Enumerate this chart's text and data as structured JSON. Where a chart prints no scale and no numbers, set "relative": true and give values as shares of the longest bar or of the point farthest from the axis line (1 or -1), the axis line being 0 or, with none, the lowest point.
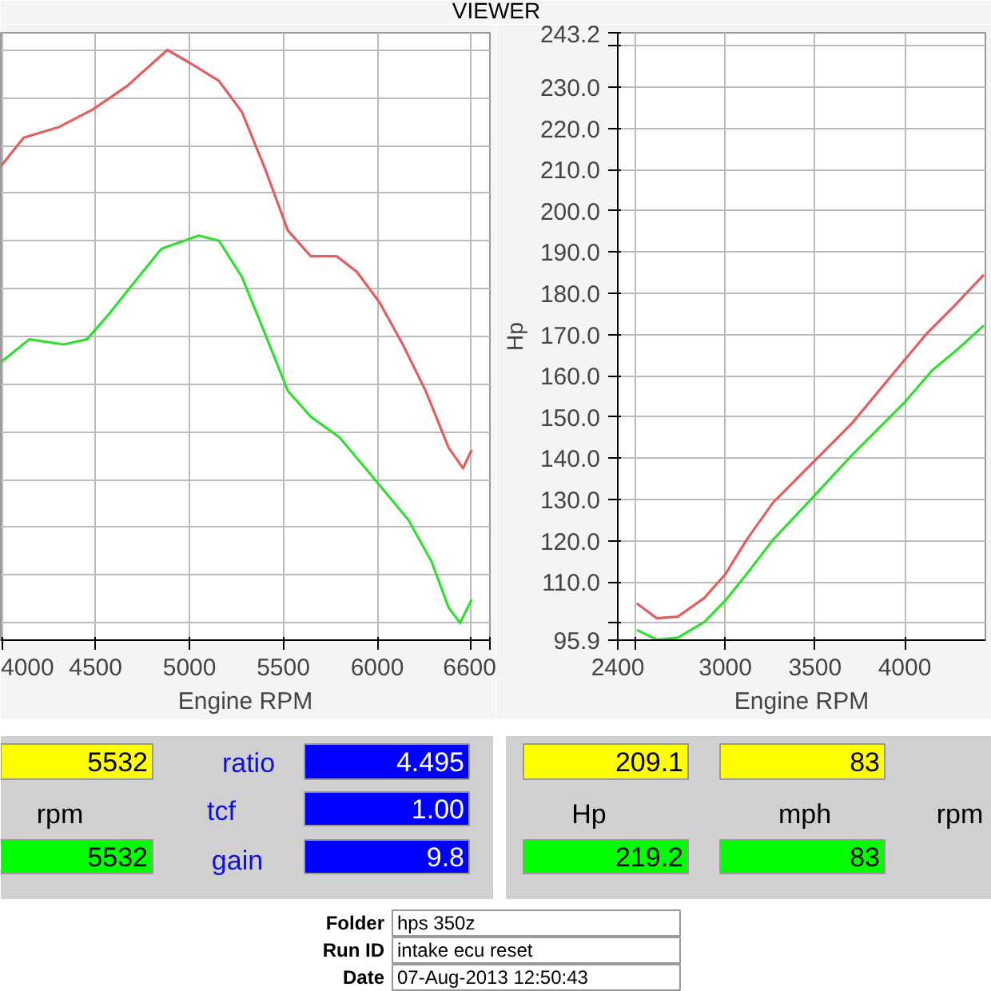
{
  "chart_data": [
    {
      "type": "line",
      "title": "VIEWER",
      "relative": true,
      "xlabel": "Engine RPM",
      "xlim": [
        3995,
        6600
      ],
      "xticks": [
        4000,
        4500,
        5000,
        5500,
        6000,
        {
          "value": 6500,
          "label": null
        },
        6600
      ],
      "grid": true,
      "tick_labels": "x",
      "series": [
        {
          "color": "#e06060",
          "x": [
            3995,
            4117,
            4301,
            4484,
            4668,
            4882,
            5004,
            5157,
            5279,
            5402,
            5524,
            5646,
            5784,
            5891,
            6013,
            6136,
            6258,
            6380,
            6457,
            6503
          ],
          "values": [
            0.797,
            0.847,
            0.865,
            0.896,
            0.937,
            1.0,
            0.977,
            0.946,
            0.892,
            0.793,
            0.685,
            0.64,
            0.64,
            0.613,
            0.559,
            0.486,
            0.405,
            0.306,
            0.27,
            0.302
          ]
        },
        {
          "color": "#33dd33",
          "x": [
            3995,
            4148,
            4331,
            4454,
            4576,
            4729,
            4851,
            5050,
            5157,
            5279,
            5402,
            5524,
            5646,
            5799,
            5983,
            6166,
            6288,
            6380,
            6441,
            6503
          ],
          "values": [
            0.455,
            0.495,
            0.486,
            0.495,
            0.541,
            0.604,
            0.653,
            0.676,
            0.667,
            0.604,
            0.505,
            0.405,
            0.36,
            0.324,
            0.252,
            0.18,
            0.108,
            0.027,
            0.0,
            0.041
          ]
        }
      ]
    },
    {
      "type": "line",
      "xlabel": "Engine RPM",
      "ylabel": "Hp",
      "xlim": [
        2400,
        4450
      ],
      "xticks": [
        2400,
        {
          "value": 2500,
          "label": null
        },
        3000,
        3500,
        4000
      ],
      "ylim": [
        95.9,
        243.2
      ],
      "yticks": [
        {
          "value": 95.9,
          "label": "95.9"
        },
        {
          "value": 100,
          "label": null
        },
        {
          "value": 110,
          "label": "110.0"
        },
        {
          "value": 120,
          "label": "120.0"
        },
        {
          "value": 130,
          "label": "130.0"
        },
        {
          "value": 140,
          "label": "140.0"
        },
        {
          "value": 150,
          "label": "150.0"
        },
        {
          "value": 160,
          "label": "160.0"
        },
        {
          "value": 170,
          "label": "170.0"
        },
        {
          "value": 180,
          "label": "180.0"
        },
        {
          "value": 190,
          "label": "190.0"
        },
        {
          "value": 200,
          "label": "200.0"
        },
        {
          "value": 210,
          "label": "210.0"
        },
        {
          "value": 220,
          "label": "220.0"
        },
        {
          "value": 230,
          "label": "230.0"
        },
        {
          "value": 240,
          "label": null
        },
        {
          "value": 243.2,
          "label": "243.2"
        }
      ],
      "grid": true,
      "series": [
        {
          "color": "#e06060",
          "x": [
            2506,
            2618,
            2735,
            2882,
            3000,
            3118,
            3265,
            3500,
            3706,
            3853,
            4000,
            4124,
            4271,
            4441
          ],
          "values": [
            104.8,
            101.2,
            101.6,
            106.1,
            111.9,
            120.2,
            129.2,
            139.5,
            148.5,
            156.2,
            163.9,
            170.3,
            176.7,
            184.5
          ]
        },
        {
          "color": "#33dd33",
          "x": [
            2506,
            2618,
            2735,
            2882,
            3000,
            3118,
            3265,
            3500,
            3706,
            3853,
            4000,
            4153,
            4294,
            4441
          ],
          "values": [
            98.4,
            96.0,
            96.5,
            100.3,
            105.5,
            111.9,
            120.2,
            131.1,
            140.8,
            147.2,
            153.6,
            161.3,
            166.4,
            172.2
          ]
        }
      ]
    },
    {
      "type": "other",
      "annotations": [
        "5532",
        "ratio",
        "4.495",
        "rpm",
        "tcf",
        "1.00",
        "5532",
        "gain",
        "9.8",
        "209.1",
        "83",
        "Hp",
        "mph",
        "rpm",
        "219.2",
        "83",
        "Folder",
        "hps 350z",
        "Run ID",
        "intake ecu reset",
        "Date",
        "07-Aug-2013  12:50:43"
      ]
    }
  ]
}
